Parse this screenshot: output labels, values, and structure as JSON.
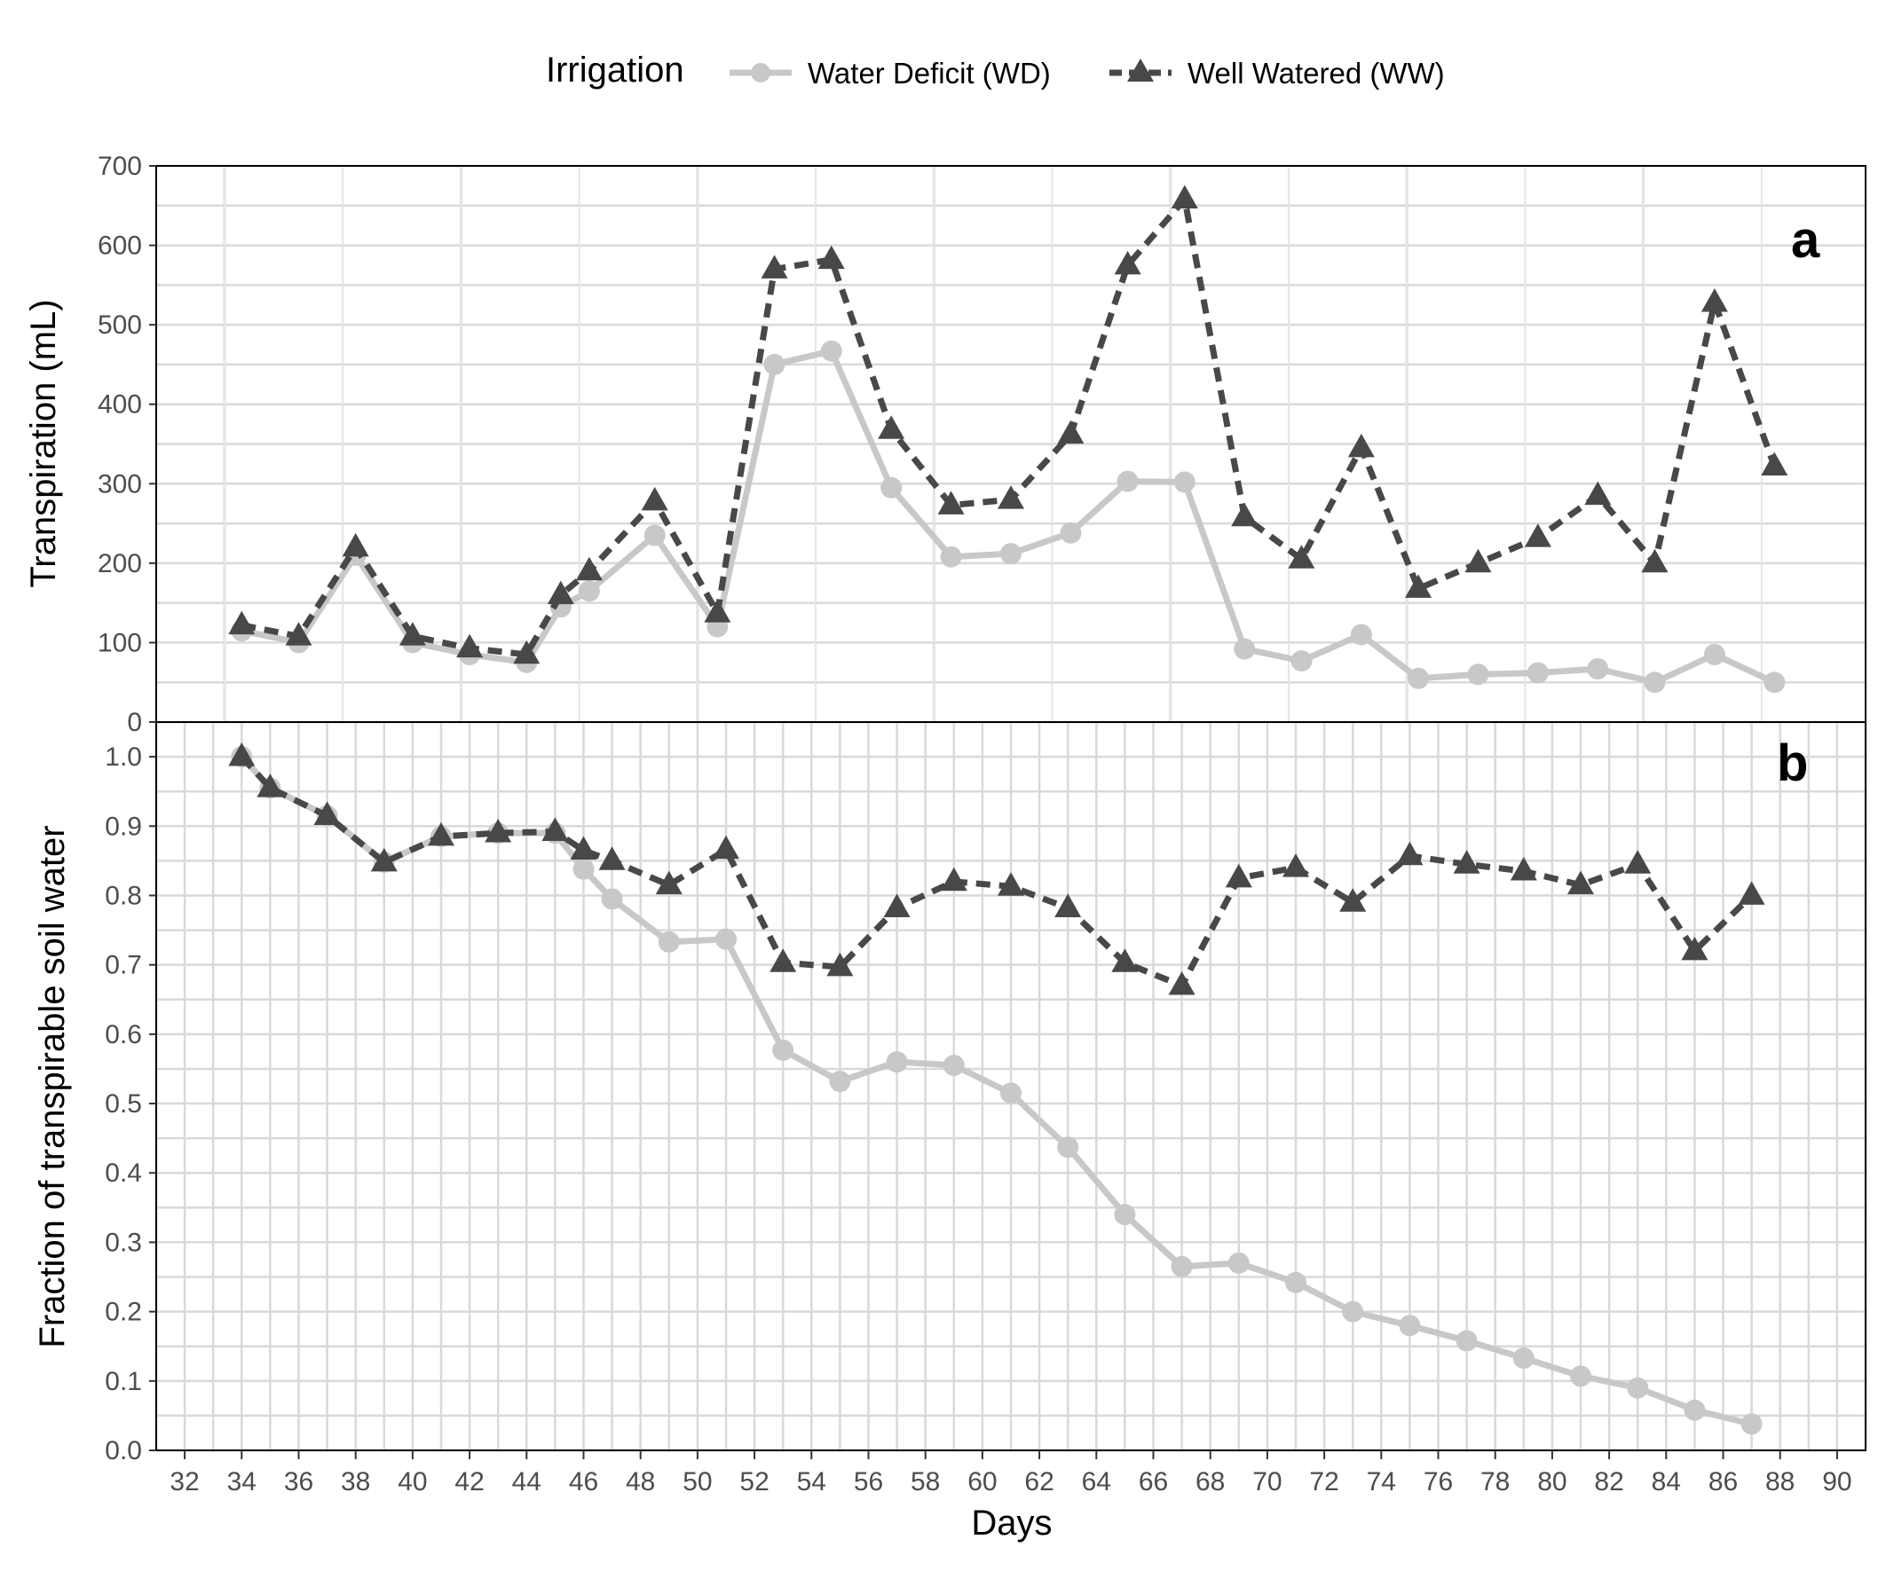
{
  "legend": {
    "title": "Irrigation",
    "items": [
      {
        "label": "Water Deficit (WD)",
        "color": "#c8c8c8",
        "marker": "circle",
        "dash": "solid"
      },
      {
        "label": "Well Watered (WW)",
        "color": "#484848",
        "marker": "triangle",
        "dash": "dashed"
      }
    ]
  },
  "chart_data": [
    {
      "panel": "a",
      "type": "line",
      "ylabel": "Transpiration (mL)",
      "ylim": [
        0,
        700
      ],
      "yticks": [
        "0",
        "100",
        "200",
        "300",
        "400",
        "500",
        "600",
        "700"
      ],
      "series": [
        {
          "name": "Water Deficit (WD)",
          "x": [
            34,
            36,
            38,
            40,
            42,
            44,
            45.2,
            46.2,
            48.5,
            50.7,
            52.7,
            54.7,
            56.8,
            58.9,
            61,
            63.1,
            65.1,
            67.1,
            69.2,
            71.2,
            73.3,
            75.3,
            77.4,
            79.5,
            81.6,
            83.6,
            85.7,
            87.8
          ],
          "values": [
            115,
            100,
            210,
            100,
            85,
            75,
            145,
            165,
            235,
            120,
            450,
            467,
            295,
            208,
            212,
            238,
            303,
            302,
            92,
            77,
            110,
            55,
            60,
            62,
            67,
            50,
            85,
            50
          ]
        },
        {
          "name": "Well Watered (WW)",
          "x": [
            34,
            36,
            38,
            40,
            42,
            44,
            45.2,
            46.2,
            48.5,
            50.7,
            52.7,
            54.7,
            56.8,
            58.9,
            61,
            63.1,
            65.1,
            67.1,
            69.2,
            71.2,
            73.3,
            75.3,
            77.4,
            79.5,
            81.6,
            83.6,
            85.7,
            87.8
          ],
          "values": [
            122,
            108,
            220,
            108,
            93,
            85,
            160,
            190,
            278,
            137,
            570,
            582,
            368,
            273,
            280,
            362,
            575,
            658,
            258,
            205,
            345,
            168,
            200,
            232,
            285,
            200,
            528,
            322
          ]
        }
      ]
    },
    {
      "panel": "b",
      "type": "line",
      "xlabel": "Days",
      "ylabel": "Fraction of transpirable soil water",
      "xlim": [
        31,
        91
      ],
      "ylim": [
        0,
        1.05
      ],
      "xticks": [
        "32",
        "34",
        "36",
        "38",
        "40",
        "42",
        "44",
        "46",
        "48",
        "50",
        "52",
        "54",
        "56",
        "58",
        "60",
        "62",
        "64",
        "66",
        "68",
        "70",
        "72",
        "74",
        "76",
        "78",
        "80",
        "82",
        "84",
        "86",
        "88",
        "90"
      ],
      "yticks": [
        "0.0",
        "0.1",
        "0.2",
        "0.3",
        "0.4",
        "0.5",
        "0.6",
        "0.7",
        "0.8",
        "0.9",
        "1.0"
      ],
      "series": [
        {
          "name": "Water Deficit (WD)",
          "x": [
            34,
            35,
            37,
            39,
            41,
            43,
            45,
            46,
            47,
            49,
            51,
            53,
            55,
            57,
            59,
            61,
            63,
            65,
            67,
            69,
            71,
            73,
            75,
            77,
            79,
            81,
            83,
            85,
            87
          ],
          "values": [
            1.0,
            0.955,
            0.915,
            0.848,
            0.885,
            0.89,
            0.89,
            0.838,
            0.795,
            0.733,
            0.737,
            0.577,
            0.532,
            0.56,
            0.555,
            0.515,
            0.437,
            0.34,
            0.265,
            0.27,
            0.242,
            0.2,
            0.18,
            0.158,
            0.133,
            0.107,
            0.09,
            0.058,
            0.038
          ]
        },
        {
          "name": "Well Watered (WW)",
          "x": [
            34,
            35,
            37,
            39,
            41,
            43,
            45,
            46,
            47,
            49,
            51,
            53,
            55,
            57,
            59,
            61,
            63,
            65,
            67,
            69,
            71,
            73,
            75,
            77,
            79,
            81,
            83,
            85,
            87
          ],
          "values": [
            1.0,
            0.955,
            0.915,
            0.848,
            0.885,
            0.89,
            0.892,
            0.865,
            0.85,
            0.815,
            0.866,
            0.703,
            0.697,
            0.782,
            0.82,
            0.813,
            0.782,
            0.703,
            0.67,
            0.825,
            0.84,
            0.79,
            0.857,
            0.845,
            0.835,
            0.815,
            0.845,
            0.72,
            0.8
          ]
        }
      ]
    }
  ]
}
